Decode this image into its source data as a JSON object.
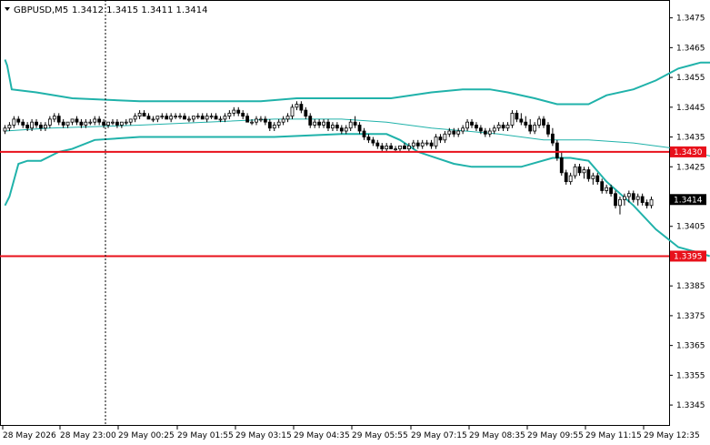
{
  "header": {
    "symbol": "GBPUSD,M5",
    "ohlc": "1.3412 1.3415 1.3411 1.3414",
    "menu_icon": "triangle-down-icon"
  },
  "colors": {
    "background": "#ffffff",
    "candle": "#000000",
    "bollinger": "#20b2aa",
    "moving_average": "#20b2aa",
    "level_line": "#e8111b",
    "current_price_tag": "#000000",
    "level_tag": "#e8111b"
  },
  "current_price": "1.3414",
  "levels": [
    {
      "label": "1.3430",
      "value": 1.343
    },
    {
      "label": "1.3395",
      "value": 1.3395
    }
  ],
  "chart_data": {
    "type": "candlestick",
    "symbol": "GBPUSD",
    "timeframe": "M5",
    "y_ticks": [
      "1.3475",
      "1.3465",
      "1.3455",
      "1.3445",
      "1.3435",
      "1.3425",
      "1.3405",
      "1.3385",
      "1.3375",
      "1.3365",
      "1.3355",
      "1.3345"
    ],
    "x_ticks": [
      "28 May 2026",
      "28 May 23:00",
      "29 May 00:25",
      "29 May 01:55",
      "29 May 03:15",
      "29 May 04:35",
      "29 May 05:55",
      "29 May 07:15",
      "29 May 08:35",
      "29 May 09:55",
      "29 May 11:15",
      "29 May 12:35"
    ],
    "ylim": [
      1.3338,
      1.3481
    ],
    "grid": false,
    "candles": [
      [
        1.3437,
        1.3439,
        1.3436,
        1.3438
      ],
      [
        1.3438,
        1.344,
        1.3437,
        1.3439
      ],
      [
        1.3439,
        1.3442,
        1.3438,
        1.3441
      ],
      [
        1.3441,
        1.3442,
        1.3439,
        1.344
      ],
      [
        1.344,
        1.3441,
        1.3438,
        1.3439
      ],
      [
        1.3439,
        1.344,
        1.3437,
        1.3438
      ],
      [
        1.3438,
        1.3441,
        1.3437,
        1.344
      ],
      [
        1.344,
        1.3441,
        1.3438,
        1.3439
      ],
      [
        1.3439,
        1.344,
        1.3437,
        1.3438
      ],
      [
        1.3438,
        1.344,
        1.3437,
        1.3439
      ],
      [
        1.3439,
        1.3442,
        1.3438,
        1.3441
      ],
      [
        1.3441,
        1.3443,
        1.344,
        1.3442
      ],
      [
        1.3442,
        1.3443,
        1.3439,
        1.344
      ],
      [
        1.344,
        1.3441,
        1.3438,
        1.3439
      ],
      [
        1.3439,
        1.344,
        1.3438,
        1.344
      ],
      [
        1.344,
        1.3441,
        1.3439,
        1.3441
      ],
      [
        1.3441,
        1.3442,
        1.3439,
        1.344
      ],
      [
        1.344,
        1.3441,
        1.3438,
        1.3439
      ],
      [
        1.3439,
        1.3441,
        1.3438,
        1.344
      ],
      [
        1.344,
        1.3441,
        1.3439,
        1.344
      ],
      [
        1.344,
        1.3442,
        1.3439,
        1.3441
      ],
      [
        1.3441,
        1.3442,
        1.3439,
        1.344
      ],
      [
        1.344,
        1.3441,
        1.3438,
        1.3439
      ],
      [
        1.3439,
        1.344,
        1.3438,
        1.344
      ],
      [
        1.344,
        1.3441,
        1.3439,
        1.344
      ],
      [
        1.344,
        1.3441,
        1.3438,
        1.3439
      ],
      [
        1.3439,
        1.344,
        1.3438,
        1.344
      ],
      [
        1.344,
        1.3441,
        1.3439,
        1.344
      ],
      [
        1.344,
        1.3441,
        1.3439,
        1.3441
      ],
      [
        1.3441,
        1.3443,
        1.344,
        1.3442
      ],
      [
        1.3442,
        1.3444,
        1.3441,
        1.3443
      ],
      [
        1.3443,
        1.3444,
        1.3442,
        1.3442
      ],
      [
        1.3442,
        1.3443,
        1.3441,
        1.3441
      ],
      [
        1.3441,
        1.3442,
        1.344,
        1.3441
      ],
      [
        1.3441,
        1.3442,
        1.344,
        1.3442
      ],
      [
        1.3442,
        1.3443,
        1.3441,
        1.3442
      ],
      [
        1.3442,
        1.3443,
        1.3441,
        1.3441
      ],
      [
        1.3441,
        1.3443,
        1.344,
        1.3442
      ],
      [
        1.3442,
        1.3443,
        1.3441,
        1.3442
      ],
      [
        1.3442,
        1.3443,
        1.3441,
        1.3442
      ],
      [
        1.3442,
        1.3443,
        1.3441,
        1.3441
      ],
      [
        1.3441,
        1.3442,
        1.344,
        1.3441
      ],
      [
        1.3441,
        1.3442,
        1.344,
        1.3442
      ],
      [
        1.3442,
        1.3443,
        1.3441,
        1.3442
      ],
      [
        1.3442,
        1.3443,
        1.3441,
        1.3441
      ],
      [
        1.3441,
        1.3443,
        1.344,
        1.3442
      ],
      [
        1.3442,
        1.3443,
        1.3441,
        1.3442
      ],
      [
        1.3442,
        1.3443,
        1.3441,
        1.3441
      ],
      [
        1.3441,
        1.3442,
        1.344,
        1.3441
      ],
      [
        1.3441,
        1.3443,
        1.344,
        1.3442
      ],
      [
        1.3442,
        1.3444,
        1.3441,
        1.3443
      ],
      [
        1.3443,
        1.3445,
        1.3442,
        1.3444
      ],
      [
        1.3444,
        1.3445,
        1.3442,
        1.3443
      ],
      [
        1.3443,
        1.3444,
        1.3441,
        1.3442
      ],
      [
        1.3442,
        1.3443,
        1.344,
        1.344
      ],
      [
        1.344,
        1.3441,
        1.3439,
        1.344
      ],
      [
        1.344,
        1.3442,
        1.3439,
        1.3441
      ],
      [
        1.3441,
        1.3442,
        1.344,
        1.3441
      ],
      [
        1.3441,
        1.3442,
        1.3439,
        1.344
      ],
      [
        1.344,
        1.3441,
        1.3437,
        1.3438
      ],
      [
        1.3438,
        1.344,
        1.3437,
        1.3439
      ],
      [
        1.3439,
        1.3441,
        1.3438,
        1.344
      ],
      [
        1.344,
        1.3442,
        1.3439,
        1.3441
      ],
      [
        1.3441,
        1.3443,
        1.344,
        1.3442
      ],
      [
        1.3442,
        1.3446,
        1.3441,
        1.3445
      ],
      [
        1.3445,
        1.3447,
        1.3444,
        1.3446
      ],
      [
        1.3446,
        1.3447,
        1.3443,
        1.3444
      ],
      [
        1.3444,
        1.3445,
        1.3441,
        1.3442
      ],
      [
        1.3442,
        1.3443,
        1.3438,
        1.3439
      ],
      [
        1.3439,
        1.3441,
        1.3438,
        1.344
      ],
      [
        1.344,
        1.3441,
        1.3438,
        1.3439
      ],
      [
        1.3439,
        1.3441,
        1.3438,
        1.344
      ],
      [
        1.344,
        1.3441,
        1.3437,
        1.3438
      ],
      [
        1.3438,
        1.344,
        1.3437,
        1.3439
      ],
      [
        1.3439,
        1.344,
        1.3437,
        1.3438
      ],
      [
        1.3438,
        1.3439,
        1.3436,
        1.3437
      ],
      [
        1.3437,
        1.3439,
        1.3436,
        1.3438
      ],
      [
        1.3438,
        1.3441,
        1.3437,
        1.344
      ],
      [
        1.344,
        1.3442,
        1.3438,
        1.3439
      ],
      [
        1.3439,
        1.344,
        1.3436,
        1.3437
      ],
      [
        1.3437,
        1.3438,
        1.3434,
        1.3435
      ],
      [
        1.3435,
        1.3436,
        1.3433,
        1.3434
      ],
      [
        1.3434,
        1.3435,
        1.3432,
        1.3433
      ],
      [
        1.3433,
        1.3434,
        1.3431,
        1.3432
      ],
      [
        1.3432,
        1.3433,
        1.343,
        1.3431
      ],
      [
        1.3431,
        1.3433,
        1.343,
        1.3432
      ],
      [
        1.3432,
        1.3433,
        1.3431,
        1.3431
      ],
      [
        1.3431,
        1.3432,
        1.343,
        1.3431
      ],
      [
        1.3431,
        1.3432,
        1.343,
        1.3432
      ],
      [
        1.3432,
        1.3433,
        1.3431,
        1.3431
      ],
      [
        1.3431,
        1.3433,
        1.343,
        1.3432
      ],
      [
        1.3432,
        1.3434,
        1.3431,
        1.3433
      ],
      [
        1.3433,
        1.3434,
        1.3431,
        1.3432
      ],
      [
        1.3432,
        1.3434,
        1.3431,
        1.3433
      ],
      [
        1.3433,
        1.3434,
        1.3432,
        1.3433
      ],
      [
        1.3433,
        1.3434,
        1.3431,
        1.3432
      ],
      [
        1.3432,
        1.3436,
        1.3431,
        1.3435
      ],
      [
        1.3435,
        1.3436,
        1.3433,
        1.3434
      ],
      [
        1.3434,
        1.3437,
        1.3433,
        1.3436
      ],
      [
        1.3436,
        1.3438,
        1.3435,
        1.3437
      ],
      [
        1.3437,
        1.3438,
        1.3435,
        1.3436
      ],
      [
        1.3436,
        1.3438,
        1.3435,
        1.3437
      ],
      [
        1.3437,
        1.3439,
        1.3436,
        1.3438
      ],
      [
        1.3438,
        1.3441,
        1.3437,
        1.344
      ],
      [
        1.344,
        1.3441,
        1.3438,
        1.3439
      ],
      [
        1.3439,
        1.344,
        1.3437,
        1.3438
      ],
      [
        1.3438,
        1.3439,
        1.3436,
        1.3437
      ],
      [
        1.3437,
        1.3438,
        1.3435,
        1.3436
      ],
      [
        1.3436,
        1.3438,
        1.3435,
        1.3437
      ],
      [
        1.3437,
        1.3439,
        1.3436,
        1.3438
      ],
      [
        1.3438,
        1.344,
        1.3437,
        1.3439
      ],
      [
        1.3439,
        1.344,
        1.3437,
        1.3438
      ],
      [
        1.3438,
        1.344,
        1.3437,
        1.3439
      ],
      [
        1.3439,
        1.3444,
        1.3438,
        1.3443
      ],
      [
        1.3443,
        1.3444,
        1.344,
        1.3441
      ],
      [
        1.3441,
        1.3443,
        1.3439,
        1.344
      ],
      [
        1.344,
        1.3442,
        1.3438,
        1.3439
      ],
      [
        1.3439,
        1.3441,
        1.3436,
        1.3437
      ],
      [
        1.3437,
        1.344,
        1.3436,
        1.3439
      ],
      [
        1.3439,
        1.3442,
        1.3438,
        1.3441
      ],
      [
        1.3441,
        1.3442,
        1.3438,
        1.3439
      ],
      [
        1.3439,
        1.344,
        1.3435,
        1.3436
      ],
      [
        1.3436,
        1.3438,
        1.3432,
        1.3433
      ],
      [
        1.3433,
        1.3434,
        1.3427,
        1.3428
      ],
      [
        1.3428,
        1.343,
        1.3422,
        1.3423
      ],
      [
        1.3423,
        1.3424,
        1.3419,
        1.342
      ],
      [
        1.342,
        1.3423,
        1.3419,
        1.3422
      ],
      [
        1.3422,
        1.3426,
        1.3421,
        1.3425
      ],
      [
        1.3425,
        1.3426,
        1.3422,
        1.3423
      ],
      [
        1.3423,
        1.3425,
        1.3421,
        1.3424
      ],
      [
        1.3424,
        1.3425,
        1.342,
        1.3421
      ],
      [
        1.3421,
        1.3423,
        1.3419,
        1.3422
      ],
      [
        1.3422,
        1.3423,
        1.3419,
        1.342
      ],
      [
        1.342,
        1.3421,
        1.3416,
        1.3417
      ],
      [
        1.3417,
        1.3419,
        1.3416,
        1.3418
      ],
      [
        1.3418,
        1.3419,
        1.3415,
        1.3416
      ],
      [
        1.3416,
        1.3417,
        1.3411,
        1.3412
      ],
      [
        1.3412,
        1.3415,
        1.3409,
        1.3414
      ],
      [
        1.3414,
        1.3416,
        1.3412,
        1.3415
      ],
      [
        1.3415,
        1.3417,
        1.3413,
        1.3416
      ],
      [
        1.3416,
        1.3417,
        1.3413,
        1.3414
      ],
      [
        1.3414,
        1.3416,
        1.3412,
        1.3415
      ],
      [
        1.3415,
        1.3416,
        1.3412,
        1.3413
      ],
      [
        1.3413,
        1.3414,
        1.3411,
        1.3412
      ],
      [
        1.3412,
        1.3415,
        1.3411,
        1.3414
      ]
    ],
    "bb_upper": [
      [
        0,
        1.3461
      ],
      [
        0.5,
        1.3459
      ],
      [
        1.5,
        1.3451
      ],
      [
        7,
        1.345
      ],
      [
        15,
        1.3448
      ],
      [
        30,
        1.3447
      ],
      [
        45,
        1.3447
      ],
      [
        57,
        1.3447
      ],
      [
        65,
        1.3448
      ],
      [
        75,
        1.3448
      ],
      [
        86,
        1.3448
      ],
      [
        95,
        1.345
      ],
      [
        102,
        1.3451
      ],
      [
        108,
        1.3451
      ],
      [
        112,
        1.345
      ],
      [
        118,
        1.3448
      ],
      [
        123,
        1.3446
      ],
      [
        126,
        1.3446
      ],
      [
        130,
        1.3446
      ],
      [
        134,
        1.3449
      ],
      [
        140,
        1.3451
      ],
      [
        145,
        1.3454
      ],
      [
        150,
        1.3458
      ],
      [
        155,
        1.346
      ],
      [
        159,
        1.346
      ]
    ],
    "bb_lower": [
      [
        0,
        1.3412
      ],
      [
        1,
        1.3415
      ],
      [
        3,
        1.3426
      ],
      [
        5,
        1.3427
      ],
      [
        8,
        1.3427
      ],
      [
        12,
        1.343
      ],
      [
        15,
        1.3431
      ],
      [
        20,
        1.3434
      ],
      [
        30,
        1.3435
      ],
      [
        45,
        1.3435
      ],
      [
        60,
        1.3435
      ],
      [
        75,
        1.3436
      ],
      [
        85,
        1.3436
      ],
      [
        88,
        1.3434
      ],
      [
        92,
        1.343
      ],
      [
        100,
        1.3426
      ],
      [
        104,
        1.3425
      ],
      [
        115,
        1.3425
      ],
      [
        122,
        1.3428
      ],
      [
        126,
        1.3428
      ],
      [
        130,
        1.3427
      ],
      [
        134,
        1.342
      ],
      [
        140,
        1.3412
      ],
      [
        145,
        1.3404
      ],
      [
        150,
        1.3398
      ],
      [
        155,
        1.3396
      ],
      [
        157,
        1.3395
      ]
    ],
    "ma": [
      [
        0,
        1.3437
      ],
      [
        10,
        1.3438
      ],
      [
        30,
        1.3439
      ],
      [
        60,
        1.3441
      ],
      [
        75,
        1.3441
      ],
      [
        85,
        1.344
      ],
      [
        95,
        1.3438
      ],
      [
        110,
        1.3436
      ],
      [
        120,
        1.3434
      ],
      [
        130,
        1.3434
      ],
      [
        140,
        1.3433
      ],
      [
        150,
        1.3431
      ],
      [
        159,
        1.3428
      ]
    ]
  }
}
